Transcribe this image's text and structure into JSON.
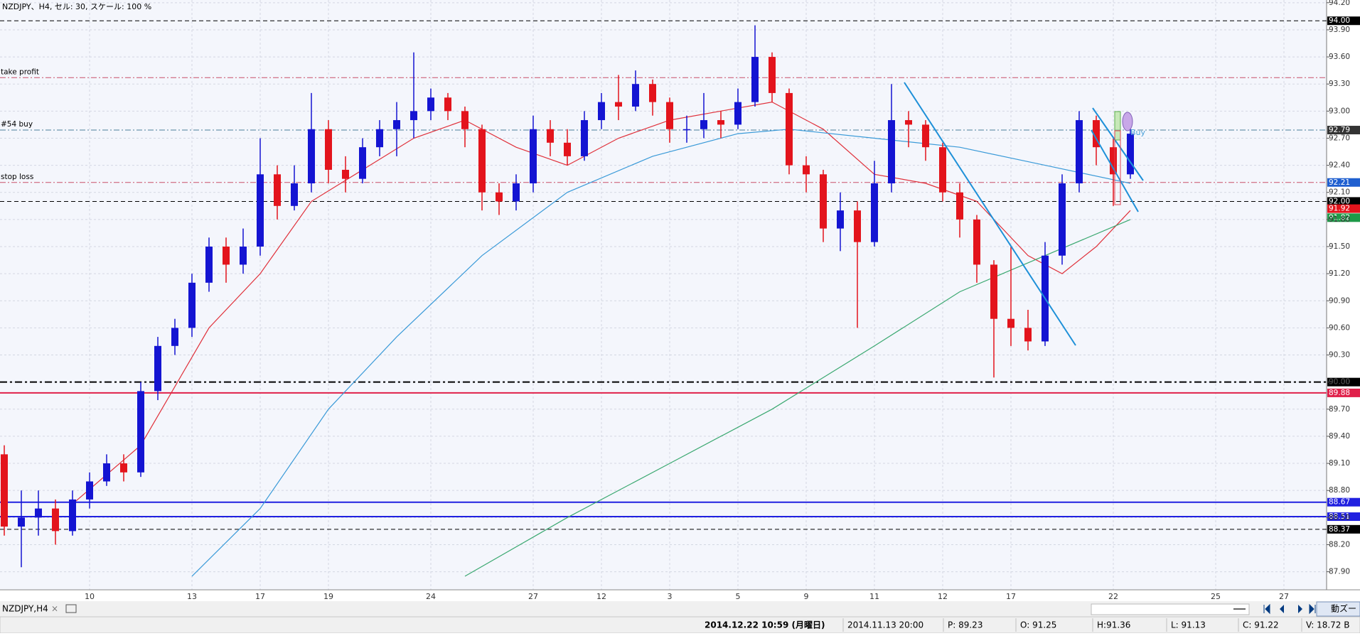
{
  "header": {
    "title": "NZDJPY、H4, セル: 30, スケール: 100 %"
  },
  "chart_data": {
    "type": "candlestick",
    "categories": [
      null,
      null,
      null,
      null,
      null,
      "10",
      null,
      null,
      null,
      null,
      null,
      "13",
      null,
      null,
      null,
      "17",
      null,
      null,
      null,
      "19",
      null,
      null,
      null,
      null,
      null,
      "24",
      null,
      null,
      null,
      null,
      null,
      "27",
      null,
      null,
      null,
      "12",
      null,
      null,
      null,
      "3",
      null,
      null,
      null,
      "5",
      null,
      null,
      null,
      "9",
      null,
      null,
      null,
      "11",
      null,
      null,
      null,
      "12",
      null,
      null,
      null,
      "17",
      null,
      null,
      null,
      null,
      null,
      "22",
      null,
      null,
      null,
      null,
      null,
      "25",
      null,
      null,
      null,
      "27",
      null,
      null
    ],
    "open": [
      89.2,
      88.4,
      88.5,
      88.6,
      88.35,
      88.7,
      88.9,
      89.1,
      89.0,
      89.9,
      90.4,
      90.6,
      91.1,
      91.5,
      91.3,
      91.5,
      92.3,
      91.95,
      92.2,
      92.8,
      92.35,
      92.25,
      92.6,
      92.8,
      92.9,
      93.0,
      93.15,
      93.0,
      92.8,
      92.1,
      92.0,
      92.2,
      92.8,
      92.65,
      92.5,
      92.9,
      93.1,
      93.05,
      93.3,
      93.1,
      92.8,
      92.8,
      92.9,
      92.85,
      93.1,
      93.6,
      93.2,
      92.4,
      92.3,
      91.7,
      91.9,
      91.55,
      92.2,
      92.9,
      92.85,
      92.6,
      92.1,
      91.8,
      91.3,
      90.7,
      90.6,
      90.45,
      91.4,
      92.2,
      92.9,
      92.6,
      92.3,
      null,
      null,
      null,
      null,
      null,
      null,
      null,
      null,
      null,
      null,
      null
    ],
    "high": [
      89.3,
      88.8,
      88.8,
      88.7,
      88.8,
      89.0,
      89.2,
      89.2,
      90.0,
      90.5,
      90.7,
      91.2,
      91.6,
      91.6,
      91.7,
      92.7,
      92.4,
      92.4,
      93.2,
      92.9,
      92.5,
      92.7,
      92.9,
      93.1,
      93.65,
      93.25,
      93.2,
      93.05,
      92.85,
      92.2,
      92.3,
      92.95,
      92.9,
      92.8,
      93.0,
      93.2,
      93.4,
      93.45,
      93.35,
      93.15,
      92.95,
      93.2,
      93.0,
      93.25,
      93.95,
      93.65,
      93.25,
      92.5,
      92.35,
      92.1,
      92.0,
      92.45,
      93.3,
      93.0,
      92.9,
      92.65,
      92.2,
      91.85,
      91.35,
      91.5,
      90.8,
      91.55,
      92.3,
      93.0,
      92.95,
      92.7,
      92.95,
      null,
      null,
      null,
      null,
      null,
      null,
      null,
      null,
      null,
      null,
      null
    ],
    "low": [
      88.3,
      87.95,
      88.3,
      88.2,
      88.3,
      88.6,
      88.85,
      88.9,
      88.95,
      89.8,
      90.3,
      90.5,
      91.0,
      91.1,
      91.2,
      91.4,
      91.8,
      91.9,
      92.1,
      92.2,
      92.1,
      92.2,
      92.5,
      92.5,
      92.7,
      92.9,
      92.9,
      92.6,
      91.9,
      91.85,
      91.9,
      92.1,
      92.5,
      92.4,
      92.45,
      92.8,
      92.9,
      93.0,
      92.95,
      92.65,
      92.65,
      92.7,
      92.7,
      92.8,
      93.05,
      93.1,
      92.3,
      92.1,
      91.55,
      91.45,
      90.6,
      91.5,
      92.1,
      92.6,
      92.45,
      92.0,
      91.6,
      91.1,
      90.05,
      90.4,
      90.35,
      90.4,
      91.3,
      92.1,
      92.4,
      91.95,
      92.25,
      null,
      null,
      null,
      null,
      null,
      null,
      null,
      null,
      null,
      null,
      null
    ],
    "close": [
      88.4,
      88.5,
      88.6,
      88.35,
      88.7,
      88.9,
      89.1,
      89.0,
      89.9,
      90.4,
      90.6,
      91.1,
      91.5,
      91.3,
      91.5,
      92.3,
      91.95,
      92.2,
      92.8,
      92.35,
      92.25,
      92.6,
      92.8,
      92.9,
      93.0,
      93.15,
      93.0,
      92.8,
      92.1,
      92.0,
      92.2,
      92.8,
      92.65,
      92.5,
      92.9,
      93.1,
      93.05,
      93.3,
      93.1,
      92.8,
      92.8,
      92.9,
      92.85,
      93.1,
      93.6,
      93.2,
      92.4,
      92.3,
      91.7,
      91.9,
      91.55,
      92.2,
      92.9,
      92.85,
      92.6,
      92.1,
      91.8,
      91.3,
      90.7,
      90.6,
      90.45,
      91.4,
      92.2,
      92.9,
      92.6,
      92.3,
      92.75,
      null,
      null,
      null,
      null,
      null,
      null,
      null,
      null,
      null,
      null,
      null
    ],
    "up_color": "#1414d2",
    "down_color": "#e3141c",
    "ylim": [
      87.7,
      94.23
    ],
    "yticks": [
      {
        "value": 87.9,
        "label": "87.90"
      },
      {
        "value": 88.2,
        "label": "88.20"
      },
      {
        "value": 88.5,
        "label": "88.50"
      },
      {
        "value": 88.8,
        "label": "88.80"
      },
      {
        "value": 89.1,
        "label": "89.10"
      },
      {
        "value": 89.4,
        "label": "89.40"
      },
      {
        "value": 89.7,
        "label": "89.70"
      },
      {
        "value": 90,
        "label": "90.00"
      },
      {
        "value": 90.3,
        "label": "90.30"
      },
      {
        "value": 90.6,
        "label": "90.60"
      },
      {
        "value": 90.9,
        "label": "90.90"
      },
      {
        "value": 91.2,
        "label": "91.20"
      },
      {
        "value": 91.5,
        "label": "91.50"
      },
      {
        "value": 91.8,
        "label": "91.80"
      },
      {
        "value": 92.1,
        "label": "92.10"
      },
      {
        "value": 92.4,
        "label": "92.40"
      },
      {
        "value": 92.7,
        "label": "92.70"
      },
      {
        "value": 93,
        "label": "93.00"
      },
      {
        "value": 93.3,
        "label": "93.30"
      },
      {
        "value": 93.6,
        "label": "93.60"
      },
      {
        "value": 93.9,
        "label": "93.90"
      },
      {
        "value": 94.2,
        "label": "94.20"
      }
    ],
    "grid": true,
    "levels": [
      {
        "value": 94,
        "label": "94.00",
        "color": "#000000",
        "style": "dash"
      },
      {
        "value": 93.37,
        "name": "take profit",
        "color": "#c8506a",
        "style": "dashdot"
      },
      {
        "value": 92.79,
        "label": "92.79",
        "name": "#54 buy",
        "color": "#4a7f9a",
        "style": "dashdot",
        "box_color": "#333333"
      },
      {
        "value": 92.21,
        "label": "92.21",
        "name": "stop loss",
        "color": "#c8506a",
        "style": "dashdot",
        "box_color": "#1f5fd0"
      },
      {
        "value": 92,
        "label": "92.00",
        "color": "#000000",
        "style": "dash"
      },
      {
        "value": 91.92,
        "label": "91.92",
        "color": "#e3141c",
        "style": "none"
      },
      {
        "value": 91.82,
        "label": "91.82",
        "color": "#1e9a48",
        "style": "none"
      },
      {
        "value": 90,
        "label": "90.00",
        "color": "#000000",
        "style": "dashdot-thick"
      },
      {
        "value": 89.88,
        "label": "89.88",
        "color": "#e0204a",
        "style": "solid"
      },
      {
        "value": 88.67,
        "label": "88.67",
        "color": "#2020e0",
        "style": "solid"
      },
      {
        "value": 88.51,
        "label": "88.51",
        "color": "#2020e0",
        "style": "solid"
      },
      {
        "value": 88.37,
        "label": "88.37",
        "color": "#000000",
        "style": "dash"
      }
    ],
    "series": [
      {
        "type": "line",
        "color": "#e0303a",
        "x": [
          4,
          8,
          12,
          15,
          18,
          21,
          24,
          27,
          30,
          33,
          36,
          39,
          42,
          45,
          48,
          51,
          54,
          57,
          60,
          62,
          64,
          66
        ],
        "values": [
          88.65,
          89.3,
          90.6,
          91.2,
          92.0,
          92.35,
          92.7,
          92.9,
          92.6,
          92.4,
          92.7,
          92.9,
          93.0,
          93.1,
          92.8,
          92.3,
          92.2,
          92.0,
          91.4,
          91.2,
          91.5,
          91.9
        ]
      },
      {
        "type": "line",
        "color": "#3a9ad8",
        "x": [
          11,
          15,
          19,
          23,
          28,
          33,
          38,
          43,
          46,
          51,
          56,
          61,
          66
        ],
        "values": [
          87.85,
          88.6,
          89.7,
          90.5,
          91.4,
          92.1,
          92.5,
          92.75,
          92.8,
          92.7,
          92.6,
          92.4,
          92.2
        ]
      },
      {
        "type": "line",
        "color": "#3aa870",
        "x": [
          27,
          33,
          39,
          45,
          51,
          56,
          61,
          66
        ],
        "values": [
          87.85,
          88.5,
          89.1,
          89.7,
          90.4,
          91.0,
          91.4,
          91.8
        ]
      }
    ],
    "order_label": "Buy"
  },
  "tab": {
    "name": "NZDJPY,H4",
    "close": "×",
    "zoom": "動ズー"
  },
  "status": [
    "2014.12.22 10:59 (月曜日)",
    "2014.11.13 20:00",
    "P: 89.23",
    "O: 91.25",
    "H:91.36",
    "L: 91.13",
    "C: 91.22",
    "V: 18.72 B"
  ]
}
